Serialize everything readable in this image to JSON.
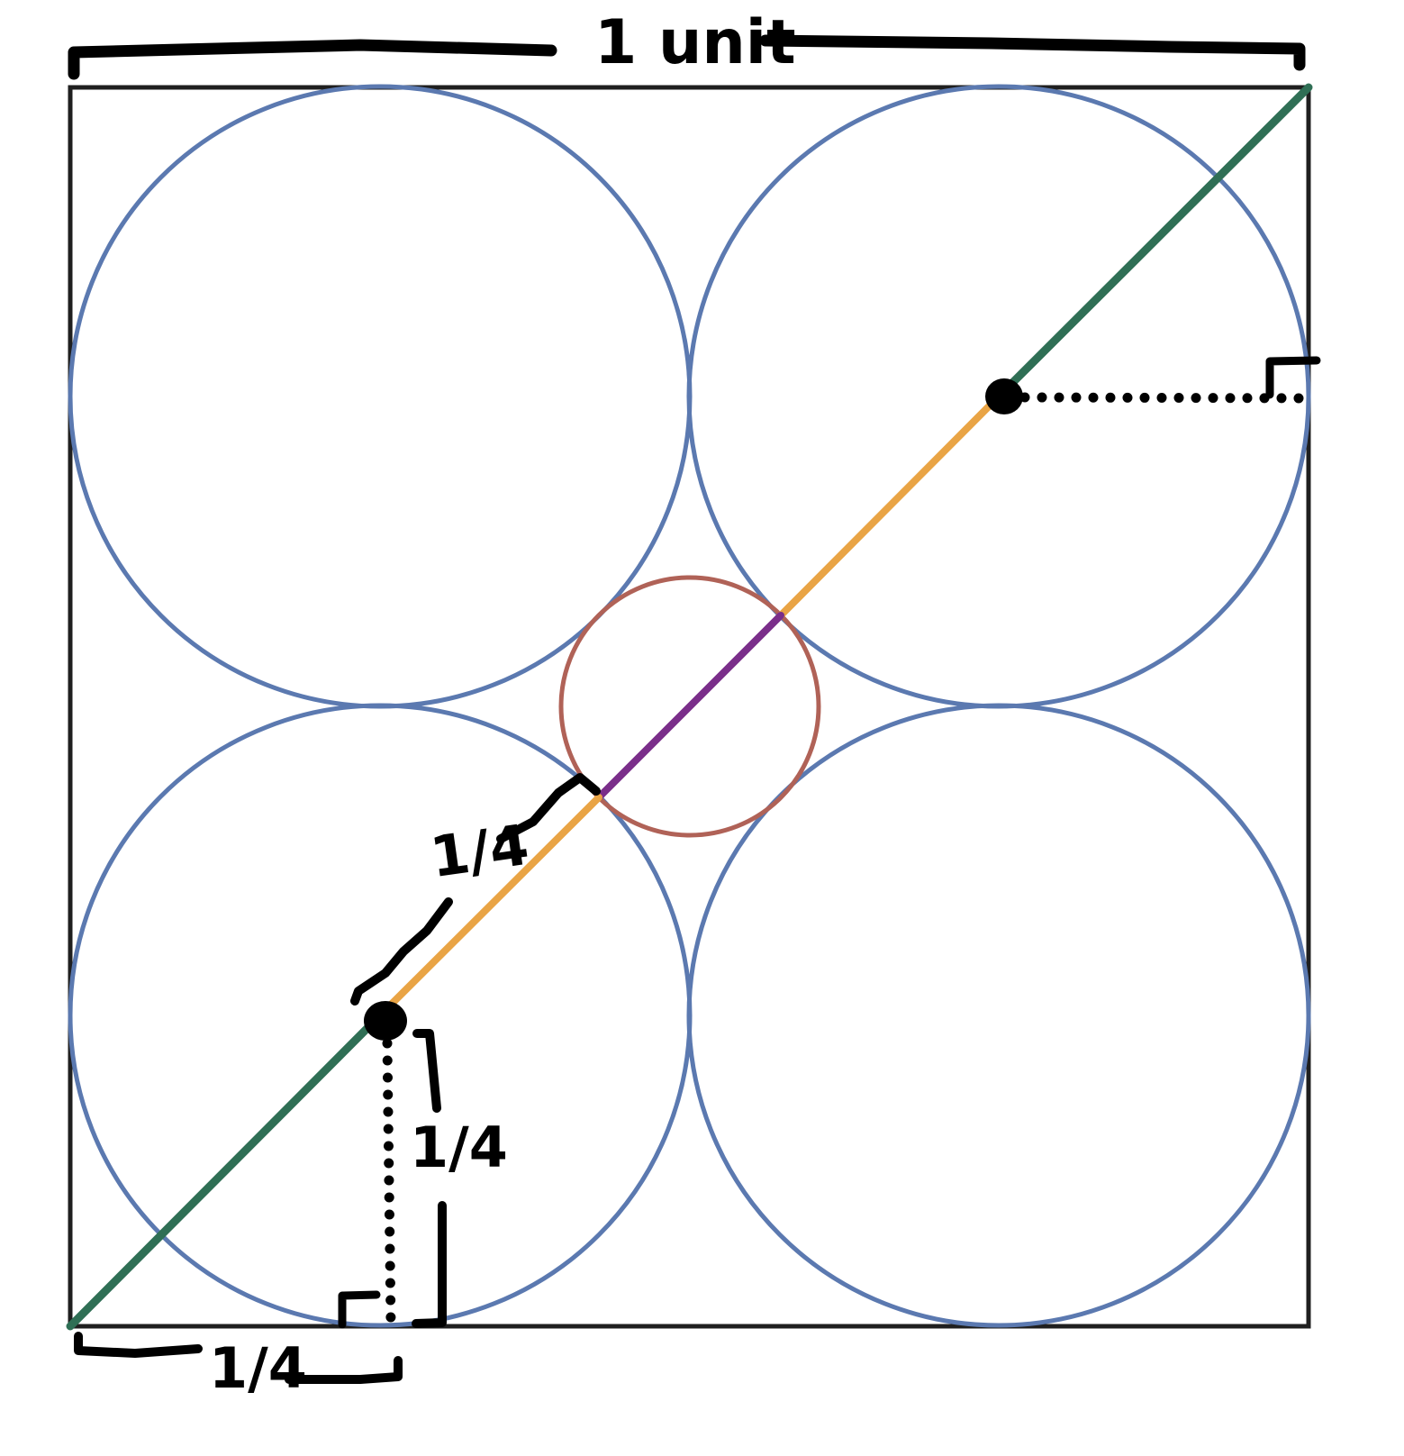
{
  "labels": {
    "width": "1 unit",
    "bottom_segment": "1/4",
    "vertical_segment": "1/4",
    "diagonal_segment": "1/4"
  },
  "colors": {
    "square": "#1f1f1f",
    "large_circles": "#5b79b0",
    "small_circle": "#b06257",
    "diagonal_outer": "#2f6f55",
    "diagonal_mid": "#e9a445",
    "diagonal_center": "#7a2e8a",
    "annotation": "#000000"
  },
  "icons": [
    "square",
    "four-large-circles",
    "small-center-circle",
    "diagonal",
    "center-dots",
    "brackets",
    "dotted-perpendiculars"
  ]
}
